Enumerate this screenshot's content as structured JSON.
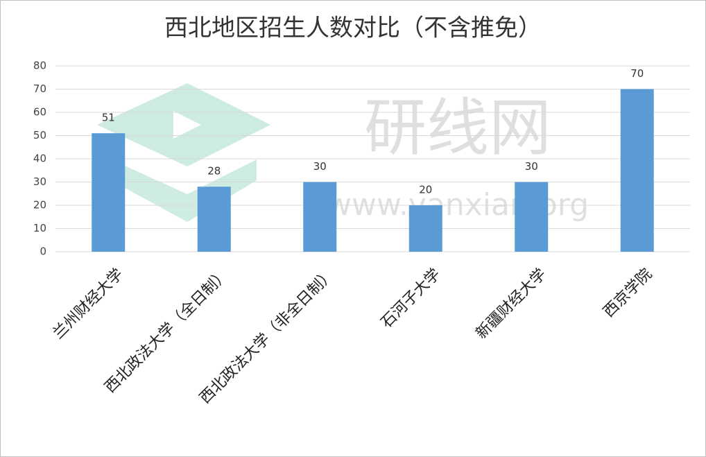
{
  "chart_data": {
    "type": "bar",
    "title": "西北地区招生人数对比（不含推免）",
    "categories": [
      "兰州财经大学",
      "西北政法大学（全日制）",
      "西北政法大学（非全日制）",
      "石河子大学",
      "新疆财经大学",
      "西京学院"
    ],
    "values": [
      51,
      28,
      30,
      20,
      30,
      70
    ],
    "color": "#5b9bd5",
    "ylim": [
      0,
      80
    ],
    "yticks": [
      0,
      10,
      20,
      30,
      40,
      50,
      60,
      70,
      80
    ],
    "grid": true,
    "watermark": [
      "研线网",
      "www.yanxian.org"
    ]
  }
}
